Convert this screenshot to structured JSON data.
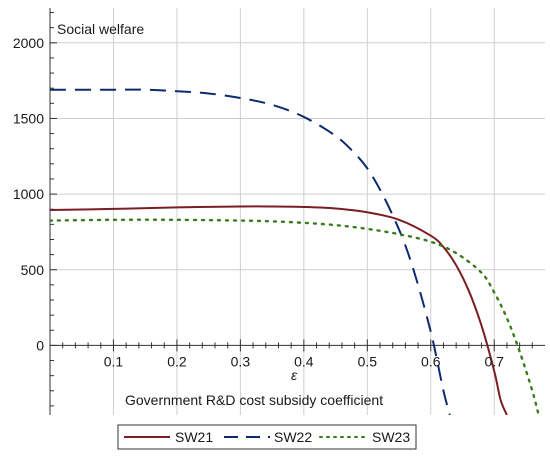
{
  "chart_data": {
    "type": "line",
    "title": "Social welfare",
    "xlabel_symbol": "ε",
    "xlabel": "Government R&D cost subsidy coefficient",
    "ylabel": "Social welfare",
    "xlim": [
      0,
      0.78
    ],
    "ylim": [
      -460,
      2230
    ],
    "xticks": [
      0.1,
      0.2,
      0.3,
      0.4,
      0.5,
      0.6,
      0.7
    ],
    "xtick_labels": [
      "0.1",
      "0.2",
      "0.3",
      "0.4",
      "0.5",
      "0.6",
      "0.7"
    ],
    "yticks": [
      0,
      500,
      1000,
      1500,
      2000
    ],
    "ytick_labels": [
      "0",
      "500",
      "1000",
      "1500",
      "2000"
    ],
    "grid": true,
    "legend_position": "bottom",
    "series": [
      {
        "name": "SW21",
        "color": "#7a1e24",
        "style": "solid",
        "x": [
          0,
          0.1,
          0.2,
          0.3,
          0.35,
          0.4,
          0.45,
          0.5,
          0.55,
          0.6,
          0.62,
          0.64,
          0.66,
          0.68,
          0.7,
          0.71,
          0.72
        ],
        "y": [
          895,
          902,
          912,
          918,
          918,
          915,
          905,
          880,
          830,
          725,
          650,
          530,
          360,
          130,
          -170,
          -360,
          -460
        ]
      },
      {
        "name": "SW22",
        "color": "#0c2a6e",
        "style": "dashed",
        "x": [
          0,
          0.1,
          0.15,
          0.2,
          0.25,
          0.3,
          0.35,
          0.4,
          0.45,
          0.48,
          0.5,
          0.52,
          0.54,
          0.56,
          0.58,
          0.6,
          0.61,
          0.62,
          0.63
        ],
        "y": [
          1690,
          1690,
          1690,
          1680,
          1665,
          1635,
          1590,
          1510,
          1385,
          1270,
          1170,
          1030,
          860,
          660,
          400,
          90,
          -100,
          -300,
          -460
        ]
      },
      {
        "name": "SW23",
        "color": "#3a7d1c",
        "style": "dotted",
        "x": [
          0,
          0.1,
          0.2,
          0.3,
          0.35,
          0.4,
          0.45,
          0.5,
          0.55,
          0.6,
          0.64,
          0.68,
          0.7,
          0.72,
          0.74,
          0.76,
          0.77
        ],
        "y": [
          825,
          830,
          830,
          825,
          820,
          810,
          795,
          770,
          735,
          685,
          610,
          480,
          350,
          180,
          -40,
          -300,
          -460
        ]
      }
    ]
  }
}
